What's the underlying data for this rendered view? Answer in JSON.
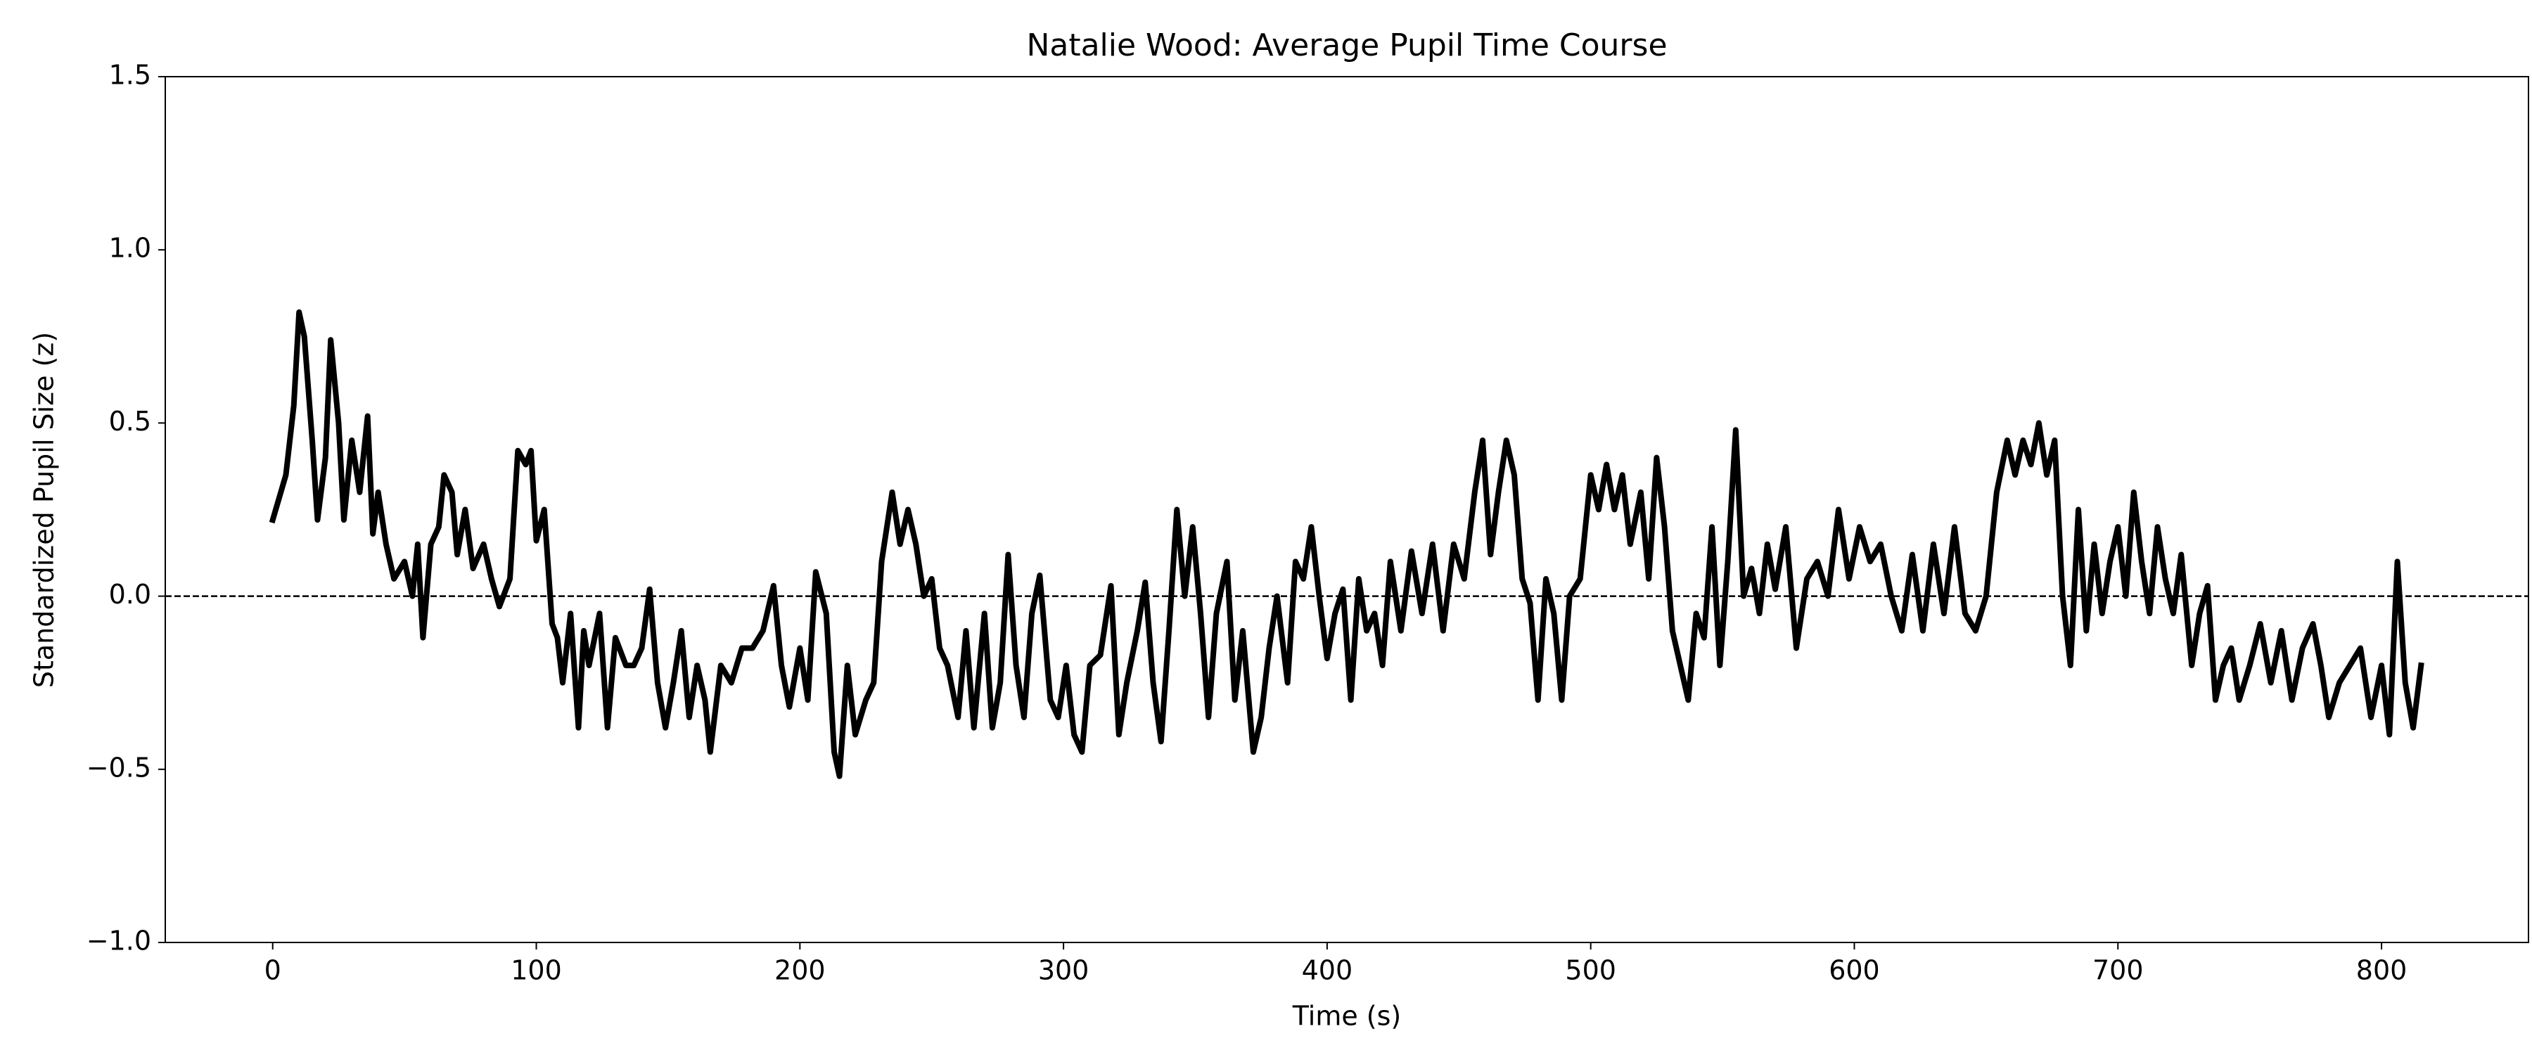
{
  "chart_data": {
    "type": "line",
    "title": "Natalie Wood: Average Pupil Time Course",
    "x_label": "Time (s)",
    "y_label": "Standardized Pupil Size (z)",
    "xlim": [
      -40.75,
      855.75
    ],
    "ylim": [
      -1.0,
      1.5
    ],
    "xticks": [
      0,
      100,
      200,
      300,
      400,
      500,
      600,
      700,
      800
    ],
    "yticks": [
      {
        "value": -1.0,
        "label": "−1.0"
      },
      {
        "value": -0.5,
        "label": "−0.5"
      },
      {
        "value": 0,
        "label": "0.0"
      },
      0.5,
      {
        "value": 1.0,
        "label": "1.0"
      },
      1.5
    ],
    "reference_line": 0,
    "series": [
      {
        "name": "Average pupil",
        "color": "#000000",
        "x": [
          0,
          5,
          8,
          10,
          12,
          15,
          17,
          20,
          22,
          25,
          27,
          30,
          33,
          36,
          38,
          40,
          43,
          46,
          50,
          53,
          55,
          57,
          60,
          63,
          65,
          68,
          70,
          73,
          76,
          80,
          83,
          86,
          90,
          93,
          96,
          98,
          100,
          103,
          106,
          108,
          110,
          113,
          116,
          118,
          120,
          124,
          127,
          130,
          134,
          137,
          140,
          143,
          146,
          149,
          152,
          155,
          158,
          161,
          164,
          166,
          170,
          174,
          178,
          182,
          186,
          190,
          193,
          196,
          200,
          203,
          206,
          210,
          213,
          215,
          218,
          221,
          225,
          228,
          231,
          235,
          238,
          241,
          244,
          247,
          250,
          253,
          256,
          260,
          263,
          266,
          270,
          273,
          276,
          279,
          282,
          285,
          288,
          291,
          295,
          298,
          301,
          304,
          307,
          310,
          314,
          318,
          321,
          324,
          328,
          331,
          334,
          337,
          340,
          343,
          346,
          349,
          352,
          355,
          358,
          362,
          365,
          368,
          372,
          375,
          378,
          381,
          385,
          388,
          391,
          394,
          397,
          400,
          403,
          406,
          409,
          412,
          415,
          418,
          421,
          424,
          428,
          432,
          436,
          440,
          444,
          448,
          452,
          456,
          459,
          462,
          465,
          468,
          471,
          474,
          477,
          480,
          483,
          486,
          489,
          492,
          496,
          500,
          503,
          506,
          509,
          512,
          515,
          519,
          522,
          525,
          528,
          531,
          534,
          537,
          540,
          543,
          546,
          549,
          552,
          555,
          558,
          561,
          564,
          567,
          570,
          574,
          578,
          582,
          586,
          590,
          594,
          598,
          602,
          606,
          610,
          614,
          618,
          622,
          626,
          630,
          634,
          638,
          642,
          646,
          650,
          654,
          658,
          661,
          664,
          667,
          670,
          673,
          676,
          679,
          682,
          685,
          688,
          691,
          694,
          697,
          700,
          703,
          706,
          709,
          712,
          715,
          718,
          721,
          724,
          728,
          731,
          734,
          737,
          740,
          743,
          746,
          750,
          754,
          758,
          762,
          766,
          770,
          774,
          777,
          780,
          784,
          788,
          792,
          796,
          800,
          803,
          806,
          809,
          812,
          815
        ],
        "values": [
          0.22,
          0.35,
          0.55,
          0.82,
          0.75,
          0.45,
          0.22,
          0.4,
          0.74,
          0.5,
          0.22,
          0.45,
          0.3,
          0.52,
          0.18,
          0.3,
          0.15,
          0.05,
          0.1,
          0.0,
          0.15,
          -0.12,
          0.15,
          0.2,
          0.35,
          0.3,
          0.12,
          0.25,
          0.08,
          0.15,
          0.05,
          -0.03,
          0.05,
          0.42,
          0.38,
          0.42,
          0.16,
          0.25,
          -0.08,
          -0.12,
          -0.25,
          -0.05,
          -0.38,
          -0.1,
          -0.2,
          -0.05,
          -0.38,
          -0.12,
          -0.2,
          -0.2,
          -0.15,
          0.02,
          -0.25,
          -0.38,
          -0.25,
          -0.1,
          -0.35,
          -0.2,
          -0.3,
          -0.45,
          -0.2,
          -0.25,
          -0.15,
          -0.15,
          -0.1,
          0.03,
          -0.2,
          -0.32,
          -0.15,
          -0.3,
          0.07,
          -0.05,
          -0.45,
          -0.52,
          -0.2,
          -0.4,
          -0.3,
          -0.25,
          0.1,
          0.3,
          0.15,
          0.25,
          0.15,
          0.0,
          0.05,
          -0.15,
          -0.2,
          -0.35,
          -0.1,
          -0.38,
          -0.05,
          -0.38,
          -0.25,
          0.12,
          -0.2,
          -0.35,
          -0.05,
          0.06,
          -0.3,
          -0.35,
          -0.2,
          -0.4,
          -0.45,
          -0.2,
          -0.17,
          0.03,
          -0.4,
          -0.25,
          -0.1,
          0.04,
          -0.25,
          -0.42,
          -0.1,
          0.25,
          0.0,
          0.2,
          -0.05,
          -0.35,
          -0.05,
          0.1,
          -0.3,
          -0.1,
          -0.45,
          -0.35,
          -0.15,
          0.0,
          -0.25,
          0.1,
          0.05,
          0.2,
          0.0,
          -0.18,
          -0.05,
          0.02,
          -0.3,
          0.05,
          -0.1,
          -0.05,
          -0.2,
          0.1,
          -0.1,
          0.13,
          -0.05,
          0.15,
          -0.1,
          0.15,
          0.05,
          0.3,
          0.45,
          0.12,
          0.3,
          0.45,
          0.35,
          0.05,
          -0.02,
          -0.3,
          0.05,
          -0.05,
          -0.3,
          0.0,
          0.05,
          0.35,
          0.25,
          0.38,
          0.25,
          0.35,
          0.15,
          0.3,
          0.05,
          0.4,
          0.2,
          -0.1,
          -0.2,
          -0.3,
          -0.05,
          -0.12,
          0.2,
          -0.2,
          0.1,
          0.48,
          0.0,
          0.08,
          -0.05,
          0.15,
          0.02,
          0.2,
          -0.15,
          0.05,
          0.1,
          0.0,
          0.25,
          0.05,
          0.2,
          0.1,
          0.15,
          0.0,
          -0.1,
          0.12,
          -0.1,
          0.15,
          -0.05,
          0.2,
          -0.05,
          -0.1,
          0.0,
          0.3,
          0.45,
          0.35,
          0.45,
          0.38,
          0.5,
          0.35,
          0.45,
          0.0,
          -0.2,
          0.25,
          -0.1,
          0.15,
          -0.05,
          0.1,
          0.2,
          0.0,
          0.3,
          0.1,
          -0.05,
          0.2,
          0.05,
          -0.05,
          0.12,
          -0.2,
          -0.05,
          0.03,
          -0.3,
          -0.2,
          -0.15,
          -0.3,
          -0.2,
          -0.08,
          -0.25,
          -0.1,
          -0.3,
          -0.15,
          -0.08,
          -0.2,
          -0.35,
          -0.25,
          -0.2,
          -0.15,
          -0.35,
          -0.2,
          -0.4,
          0.1,
          -0.25,
          -0.38,
          -0.2
        ]
      }
    ]
  }
}
